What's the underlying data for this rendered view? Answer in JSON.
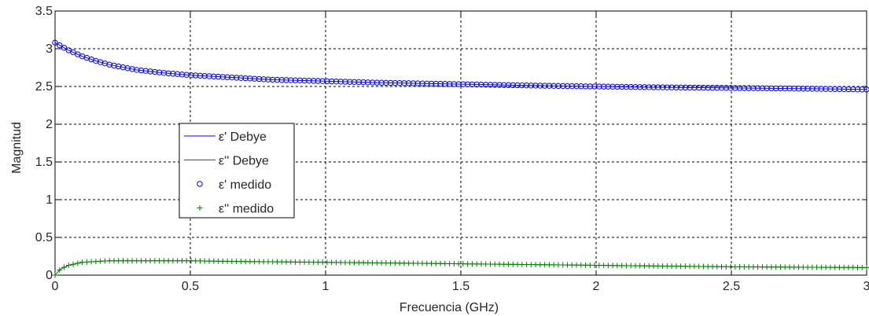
{
  "chart_data": {
    "type": "line",
    "title": "",
    "xlabel": "Frecuencia (GHz)",
    "ylabel": "Magnitud",
    "xlim": [
      0,
      3
    ],
    "ylim": [
      0,
      3.5
    ],
    "x_ticks": [
      0,
      0.5,
      1,
      1.5,
      2,
      2.5,
      3
    ],
    "x_tick_labels": [
      "0",
      "0.5",
      "1",
      "1.5",
      "2",
      "2.5",
      "3"
    ],
    "y_ticks": [
      0,
      0.5,
      1,
      1.5,
      2,
      2.5,
      3,
      3.5
    ],
    "y_tick_labels": [
      "0",
      "0.5",
      "1",
      "1.5",
      "2",
      "2.5",
      "3",
      "3.5"
    ],
    "grid": true,
    "legend_position": "center-left",
    "series": [
      {
        "name": "ε' Debye",
        "style": "line",
        "color": "#0000ff",
        "x": [
          0,
          0.05,
          0.1,
          0.15,
          0.2,
          0.3,
          0.4,
          0.5,
          0.6,
          0.7,
          0.8,
          1.0,
          1.2,
          1.5,
          1.8,
          2.0,
          2.2,
          2.5,
          2.8,
          3.0
        ],
        "values": [
          3.08,
          2.98,
          2.9,
          2.84,
          2.79,
          2.72,
          2.68,
          2.65,
          2.63,
          2.61,
          2.59,
          2.57,
          2.55,
          2.53,
          2.51,
          2.5,
          2.49,
          2.48,
          2.47,
          2.46
        ]
      },
      {
        "name": "ε'' Debye",
        "style": "line",
        "color": "#008000",
        "x": [
          0,
          0.02,
          0.05,
          0.1,
          0.15,
          0.2,
          0.3,
          0.4,
          0.5,
          0.7,
          1.0,
          1.5,
          2.0,
          2.5,
          3.0
        ],
        "values": [
          0.0,
          0.08,
          0.13,
          0.17,
          0.18,
          0.19,
          0.19,
          0.19,
          0.19,
          0.18,
          0.17,
          0.15,
          0.13,
          0.11,
          0.1
        ]
      },
      {
        "name": "ε' medido",
        "style": "markers",
        "marker": "circle",
        "color": "#0000ff",
        "x": [
          0,
          0.05,
          0.1,
          0.15,
          0.2,
          0.3,
          0.4,
          0.5,
          0.6,
          0.7,
          0.8,
          1.0,
          1.2,
          1.5,
          1.8,
          2.0,
          2.2,
          2.5,
          2.8,
          3.0
        ],
        "values": [
          3.08,
          2.98,
          2.9,
          2.84,
          2.79,
          2.72,
          2.68,
          2.65,
          2.63,
          2.61,
          2.59,
          2.57,
          2.55,
          2.53,
          2.51,
          2.5,
          2.49,
          2.48,
          2.47,
          2.46
        ],
        "samples": 180
      },
      {
        "name": "ε'' medido",
        "style": "markers",
        "marker": "plus",
        "color": "#008000",
        "x": [
          0,
          0.02,
          0.05,
          0.1,
          0.15,
          0.2,
          0.3,
          0.4,
          0.5,
          0.7,
          1.0,
          1.5,
          2.0,
          2.5,
          3.0
        ],
        "values": [
          0.0,
          0.08,
          0.13,
          0.17,
          0.18,
          0.19,
          0.19,
          0.19,
          0.19,
          0.18,
          0.17,
          0.15,
          0.13,
          0.11,
          0.1
        ],
        "samples": 180
      }
    ]
  }
}
